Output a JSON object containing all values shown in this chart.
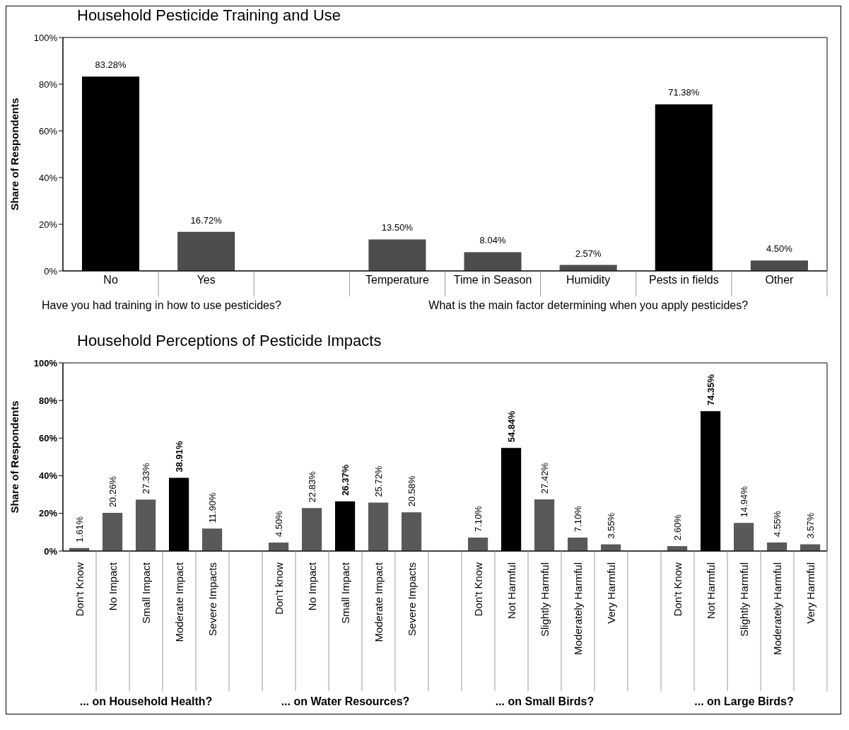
{
  "chart_data": [
    {
      "type": "bar",
      "title": "Household Pesticide Training and Use",
      "ylabel": "Share of Respondents",
      "categories": [
        "No",
        "Yes",
        null,
        "Temperature",
        "Time in Season",
        "Humidity",
        "Pests in fields",
        "Other"
      ],
      "values": [
        83.28,
        16.72,
        null,
        13.5,
        8.04,
        2.57,
        71.38,
        4.5
      ],
      "colors": [
        "#000000",
        "#4d4d4d",
        null,
        "#4d4d4d",
        "#4d4d4d",
        "#4d4d4d",
        "#000000",
        "#4d4d4d"
      ],
      "value_labels": [
        "83.28%",
        "16.72%",
        null,
        "13.50%",
        "8.04%",
        "2.57%",
        "71.38%",
        "4.50%"
      ],
      "ylim": [
        0,
        100
      ],
      "yticks": [
        {
          "value": 0,
          "label": "0%"
        },
        {
          "value": 20,
          "label": "20%"
        },
        {
          "value": 40,
          "label": "40%"
        },
        {
          "value": 60,
          "label": "60%"
        },
        {
          "value": 80,
          "label": "80%"
        },
        {
          "value": 100,
          "label": "100%"
        }
      ],
      "annotations": [
        "Have you had training in how to use pesticides?",
        "What is the main factor determining when you apply pesticides?"
      ]
    },
    {
      "type": "bar",
      "title": "Household Perceptions of Pesticide Impacts",
      "ylabel": "Share of Respondents",
      "categories": [
        "Don't Know",
        "No Impact",
        "Small Impact",
        "Moderate Impact",
        "Severe Impacts",
        null,
        "Don't know",
        "No Impact",
        "Small Impact",
        "Moderate Impact",
        "Severe Impacts",
        null,
        "Don't Know",
        "Not Harmful",
        "Slightly Harmful",
        "Moderately Harmful",
        "Very Harmful",
        null,
        "Don't Know",
        "Not Harmful",
        "Slightly Harmful",
        "Moderately Harmful",
        "Very Harmful"
      ],
      "values": [
        1.61,
        20.26,
        27.33,
        38.91,
        11.9,
        null,
        4.5,
        22.83,
        26.37,
        25.72,
        20.58,
        null,
        7.1,
        54.84,
        27.42,
        7.1,
        3.55,
        null,
        2.6,
        74.35,
        14.94,
        4.55,
        3.57
      ],
      "colors": [
        "#595959",
        "#595959",
        "#595959",
        "#000000",
        "#595959",
        null,
        "#595959",
        "#595959",
        "#000000",
        "#595959",
        "#595959",
        null,
        "#595959",
        "#000000",
        "#595959",
        "#595959",
        "#595959",
        null,
        "#595959",
        "#000000",
        "#595959",
        "#595959",
        "#595959"
      ],
      "value_labels": [
        "1.61%",
        "20.26%",
        "27.33%",
        "38.91%",
        "11.90%",
        null,
        "4.50%",
        "22.83%",
        "26.37%",
        "25.72%",
        "20.58%",
        null,
        "7.10%",
        "54.84%",
        "27.42%",
        "7.10%",
        "3.55%",
        null,
        "2.60%",
        "74.35%",
        "14.94%",
        "4.55%",
        "3.57%"
      ],
      "ylim": [
        0,
        100
      ],
      "yticks": [
        {
          "value": 0,
          "label": "0%"
        },
        {
          "value": 20,
          "label": "20%"
        },
        {
          "value": 40,
          "label": "40%"
        },
        {
          "value": 60,
          "label": "60%"
        },
        {
          "value": 80,
          "label": "80%"
        },
        {
          "value": 100,
          "label": "100%"
        }
      ],
      "annotations": [
        "... on Household Health?",
        "... on Water Resources?",
        "... on Small Birds?",
        "... on Large Birds?"
      ]
    }
  ]
}
